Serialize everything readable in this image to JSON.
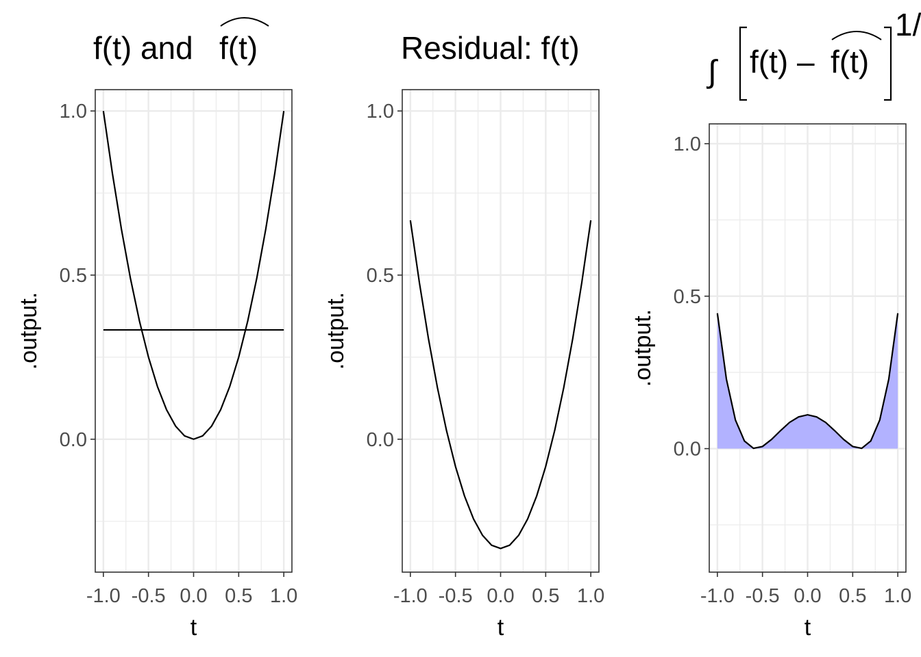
{
  "chart_data": [
    {
      "type": "line",
      "title": "f(t) and f(t)",
      "title_parts": {
        "left": "f(t) and ",
        "hat": "f(t)"
      },
      "xlabel": "t",
      "ylabel": ".output.",
      "xlim": [
        -1.09,
        1.09
      ],
      "ylim": [
        -0.405,
        1.065
      ],
      "x_ticks": [
        -1.0,
        -0.5,
        0.0,
        0.5,
        1.0
      ],
      "x_tick_labels": [
        "-1.0",
        "-0.5",
        "0.0",
        "0.5",
        "1.0"
      ],
      "y_ticks": [
        0.0,
        0.5,
        1.0
      ],
      "y_tick_labels": [
        "0.0",
        "0.5",
        "1.0"
      ],
      "grid": true,
      "series": [
        {
          "color": "#000000",
          "x": [
            -1.0,
            -0.9,
            -0.8,
            -0.7,
            -0.6,
            -0.5,
            -0.4,
            -0.3,
            -0.2,
            -0.1,
            0.0,
            0.1,
            0.2,
            0.3,
            0.4,
            0.5,
            0.6,
            0.7,
            0.8,
            0.9,
            1.0
          ],
          "y": [
            1.0,
            0.81,
            0.64,
            0.49,
            0.36,
            0.25,
            0.16,
            0.09,
            0.04,
            0.01,
            0.0,
            0.01,
            0.04,
            0.09,
            0.16,
            0.25,
            0.36,
            0.49,
            0.64,
            0.81,
            1.0
          ]
        },
        {
          "color": "#ff00ff",
          "x": [
            -1.0,
            1.0
          ],
          "y": [
            0.333,
            0.333
          ]
        }
      ]
    },
    {
      "type": "line",
      "title": "Residual: f(t)",
      "xlabel": "t",
      "ylabel": ".output.",
      "xlim": [
        -1.09,
        1.09
      ],
      "ylim": [
        -0.405,
        1.065
      ],
      "x_ticks": [
        -1.0,
        -0.5,
        0.0,
        0.5,
        1.0
      ],
      "x_tick_labels": [
        "-1.0",
        "-0.5",
        "0.0",
        "0.5",
        "1.0"
      ],
      "y_ticks": [
        0.0,
        0.5,
        1.0
      ],
      "y_tick_labels": [
        "0.0",
        "0.5",
        "1.0"
      ],
      "grid": true,
      "series": [
        {
          "color": "#000000",
          "x": [
            -1.0,
            -0.9,
            -0.8,
            -0.7,
            -0.6,
            -0.5,
            -0.4,
            -0.3,
            -0.2,
            -0.1,
            0.0,
            0.1,
            0.2,
            0.3,
            0.4,
            0.5,
            0.6,
            0.7,
            0.8,
            0.9,
            1.0
          ],
          "y": [
            0.667,
            0.477,
            0.307,
            0.157,
            0.027,
            -0.083,
            -0.173,
            -0.243,
            -0.293,
            -0.323,
            -0.333,
            -0.323,
            -0.293,
            -0.243,
            -0.173,
            -0.083,
            0.027,
            0.157,
            0.307,
            0.477,
            0.667
          ]
        }
      ]
    },
    {
      "type": "area",
      "title": "∫ [f(t) – f(t)]^1/",
      "title_parts": {
        "integral": "∫",
        "left": "f(t) – ",
        "hat": "f(t)",
        "exponent": "1/"
      },
      "xlabel": "t",
      "ylabel": ".output.",
      "xlim": [
        -1.09,
        1.09
      ],
      "ylim": [
        -0.405,
        1.065
      ],
      "x_ticks": [
        -1.0,
        -0.5,
        0.0,
        0.5,
        1.0
      ],
      "x_tick_labels": [
        "-1.0",
        "-0.5",
        "0.0",
        "0.5",
        "1.0"
      ],
      "y_ticks": [
        0.0,
        0.5,
        1.0
      ],
      "y_tick_labels": [
        "0.0",
        "0.5",
        "1.0"
      ],
      "grid": true,
      "fill_color": "#b2b2ff",
      "series": [
        {
          "color": "#000000",
          "x": [
            -1.0,
            -0.9,
            -0.8,
            -0.7,
            -0.6,
            -0.5,
            -0.4,
            -0.3,
            -0.2,
            -0.1,
            0.0,
            0.1,
            0.2,
            0.3,
            0.4,
            0.5,
            0.6,
            0.7,
            0.8,
            0.9,
            1.0
          ],
          "y": [
            0.444,
            0.228,
            0.094,
            0.025,
            0.001,
            0.007,
            0.03,
            0.059,
            0.086,
            0.104,
            0.111,
            0.104,
            0.086,
            0.059,
            0.03,
            0.007,
            0.001,
            0.025,
            0.094,
            0.228,
            0.444
          ]
        }
      ]
    }
  ]
}
